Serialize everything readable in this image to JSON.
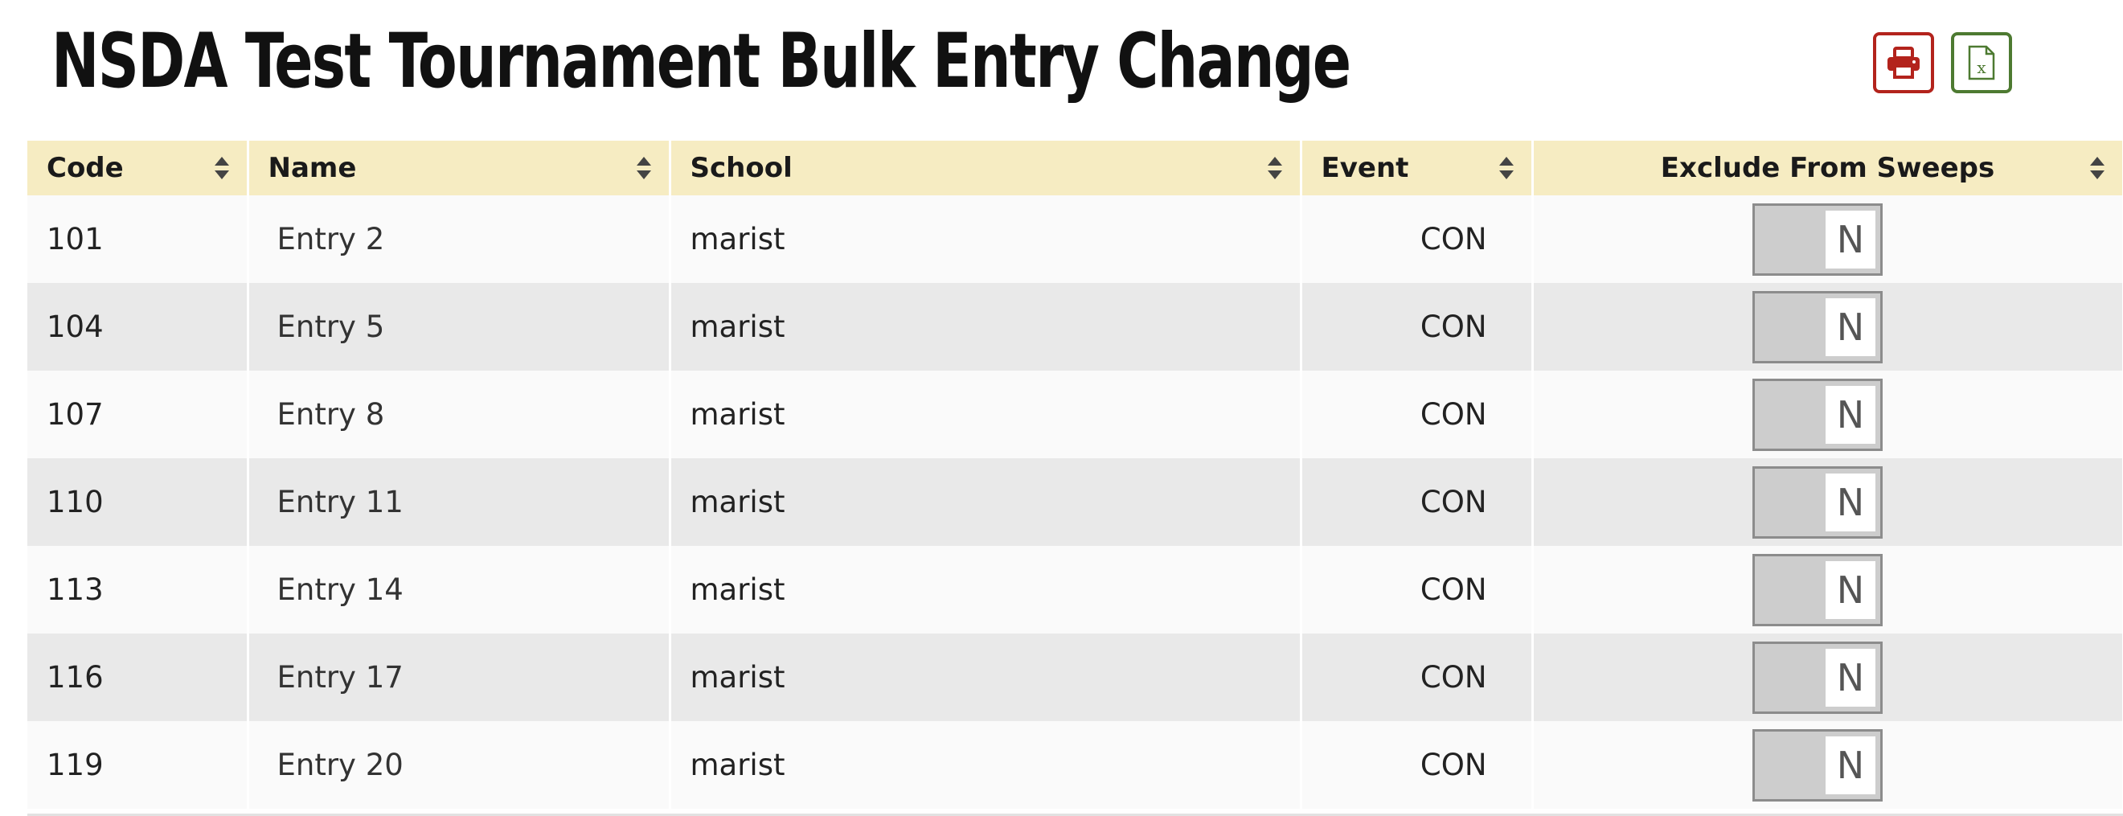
{
  "header": {
    "title": "NSDA Test Tournament Bulk Entry Change",
    "print_icon": "printer-icon",
    "excel_icon": "excel-icon",
    "print_color": "#b3231c",
    "excel_color": "#4d7a31"
  },
  "table": {
    "header_bg": "#f6ecc2",
    "columns": [
      {
        "label": "Code"
      },
      {
        "label": "Name"
      },
      {
        "label": "School"
      },
      {
        "label": "Event"
      },
      {
        "label": "Exclude From Sweeps"
      }
    ],
    "rows": [
      {
        "code": "101",
        "name": "Entry 2",
        "school": "marist",
        "event": "CON",
        "exclude": "N"
      },
      {
        "code": "104",
        "name": "Entry 5",
        "school": "marist",
        "event": "CON",
        "exclude": "N"
      },
      {
        "code": "107",
        "name": "Entry 8",
        "school": "marist",
        "event": "CON",
        "exclude": "N"
      },
      {
        "code": "110",
        "name": "Entry 11",
        "school": "marist",
        "event": "CON",
        "exclude": "N"
      },
      {
        "code": "113",
        "name": "Entry 14",
        "school": "marist",
        "event": "CON",
        "exclude": "N"
      },
      {
        "code": "116",
        "name": "Entry 17",
        "school": "marist",
        "event": "CON",
        "exclude": "N"
      },
      {
        "code": "119",
        "name": "Entry 20",
        "school": "marist",
        "event": "CON",
        "exclude": "N"
      }
    ]
  }
}
